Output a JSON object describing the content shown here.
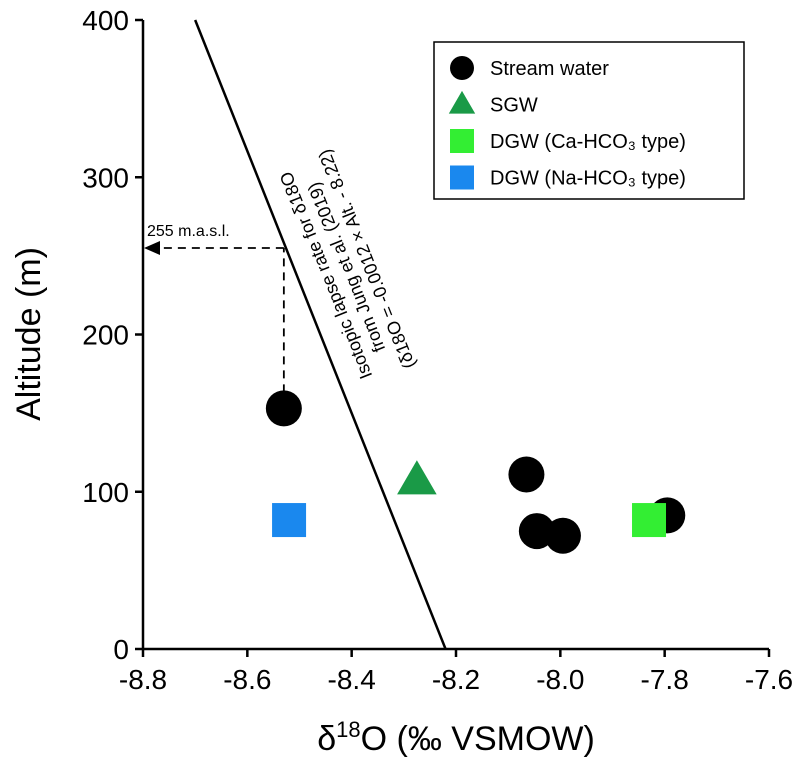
{
  "chart_data": {
    "type": "scatter",
    "title": "",
    "xlabel": "δ18O (‰ VSMOW)",
    "xlabel_parts": {
      "delta": "δ",
      "sup": "18",
      "rest": "O (‰ VSMOW)"
    },
    "ylabel": "Altitude (m)",
    "xlim": [
      -8.8,
      -7.6
    ],
    "ylim": [
      0,
      400
    ],
    "xticks": [
      -8.8,
      -8.6,
      -8.4,
      -8.2,
      -8.0,
      -7.8,
      -7.6
    ],
    "xtick_labels": [
      "-8.8",
      "-8.6",
      "-8.4",
      "-8.2",
      "-8.0",
      "-7.8",
      "-7.6"
    ],
    "yticks": [
      0,
      100,
      200,
      300,
      400
    ],
    "ytick_labels": [
      "0",
      "100",
      "200",
      "300",
      "400"
    ],
    "legend_position": "top-right",
    "series": [
      {
        "name": "Stream water",
        "marker": "circle",
        "color": "#000000",
        "points": [
          {
            "x": -8.53,
            "y": 153
          },
          {
            "x": -8.065,
            "y": 111
          },
          {
            "x": -8.045,
            "y": 75
          },
          {
            "x": -7.995,
            "y": 72
          },
          {
            "x": -7.795,
            "y": 85
          }
        ]
      },
      {
        "name": "SGW",
        "marker": "triangle",
        "color": "#1a9a47",
        "points": [
          {
            "x": -8.275,
            "y": 107
          }
        ]
      },
      {
        "name": "DGW (Ca-HCO₃ type)",
        "marker": "square",
        "color": "#33ee33",
        "points": [
          {
            "x": -7.83,
            "y": 82
          }
        ]
      },
      {
        "name": "DGW (Na-HCO₃ type)",
        "marker": "square",
        "color": "#1a88ee",
        "points": [
          {
            "x": -8.52,
            "y": 82
          }
        ]
      }
    ],
    "lapse_line": {
      "slope": -0.0012,
      "intercept": -8.22,
      "x_at_top": -8.7,
      "x_at_bottom": -8.22,
      "label_line1": "Isotopic lapse rate for δ18O",
      "label_line2": "from Jung et al. (2019)",
      "label_line3": "(δ18O = -0.0012 × Alt. - 8.22)"
    },
    "projection": {
      "from_x": -8.53,
      "from_y": 153,
      "to_altitude": 255,
      "label": "255 m.a.s.l."
    }
  }
}
